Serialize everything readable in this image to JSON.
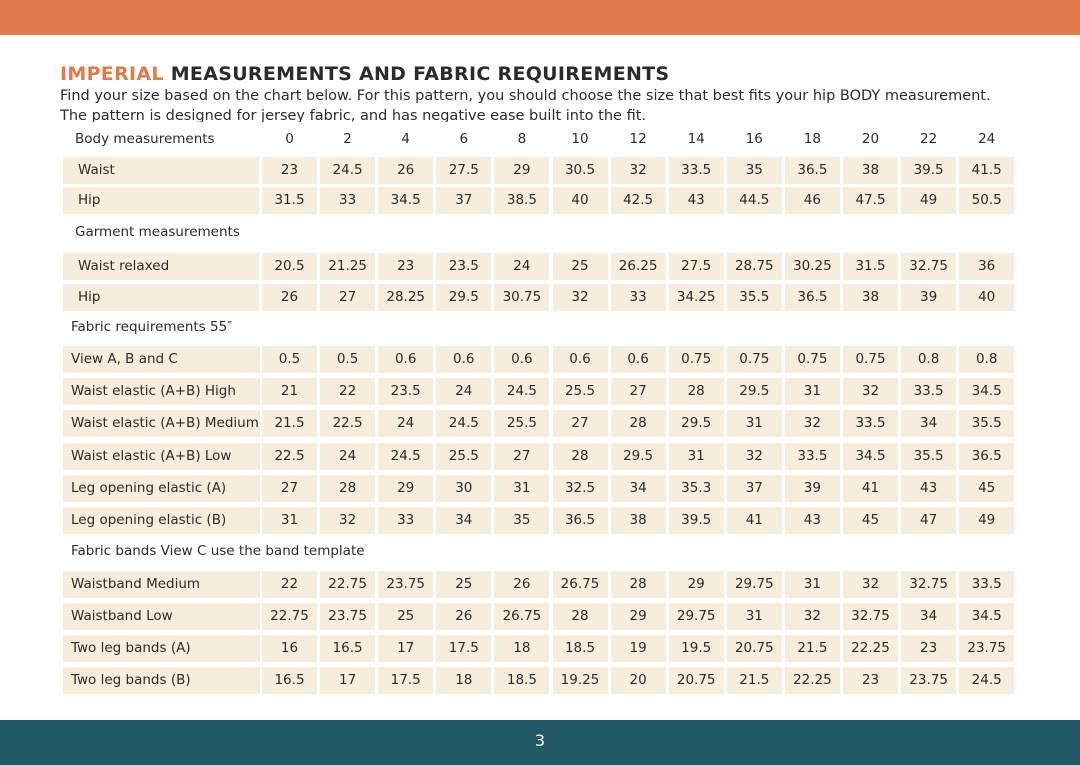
{
  "header": {
    "title_accent": "IMPERIAL",
    "title_rest": "MEASUREMENTS AND FABRIC REQUIREMENTS",
    "intro": "Find your size based on the chart below. For this pattern, you should choose the size that best fits your hip BODY measurement.  The pattern is designed for jersey fabric, and has negative ease built into the fit."
  },
  "table": {
    "columns_label": "Body measurements",
    "sizes": [
      0,
      2,
      4,
      6,
      8,
      10,
      12,
      14,
      16,
      18,
      20,
      22,
      24
    ],
    "sections": [
      {
        "rows": [
          {
            "label": "Waist",
            "values": [
              23,
              24.5,
              26,
              27.5,
              29,
              30.5,
              32,
              33.5,
              35,
              36.5,
              38,
              39.5,
              41.5
            ]
          },
          {
            "label": "Hip",
            "values": [
              31.5,
              33,
              34.5,
              37,
              38.5,
              40,
              42.5,
              43,
              44.5,
              46,
              47.5,
              49,
              50.5
            ]
          }
        ]
      },
      {
        "heading": "Garment measurements",
        "rows": [
          {
            "label": "Waist relaxed",
            "values": [
              20.5,
              21.25,
              23,
              23.5,
              24,
              25,
              26.25,
              27.5,
              28.75,
              30.25,
              31.5,
              32.75,
              36
            ]
          },
          {
            "label": "Hip",
            "values": [
              26,
              27,
              28.25,
              29.5,
              30.75,
              32,
              33,
              34.25,
              35.5,
              36.5,
              38,
              39,
              40
            ]
          }
        ]
      },
      {
        "heading": "Fabric requirements 55″",
        "rows": [
          {
            "label": "View A, B and C",
            "values": [
              0.5,
              0.5,
              0.6,
              0.6,
              0.6,
              0.6,
              0.6,
              0.75,
              0.75,
              0.75,
              0.75,
              0.8,
              0.8
            ]
          },
          {
            "label": "Waist elastic (A+B) High",
            "values": [
              21,
              22,
              23.5,
              24,
              24.5,
              25.5,
              27,
              28,
              29.5,
              31,
              32,
              33.5,
              34.5
            ]
          },
          {
            "label": "Waist elastic (A+B) Medium",
            "values": [
              21.5,
              22.5,
              24,
              24.5,
              25.5,
              27,
              28,
              29.5,
              31,
              32,
              33.5,
              34,
              35.5
            ]
          },
          {
            "label": "Waist elastic (A+B) Low",
            "values": [
              22.5,
              24,
              24.5,
              25.5,
              27,
              28,
              29.5,
              31,
              32,
              33.5,
              34.5,
              35.5,
              36.5
            ]
          },
          {
            "label": "Leg opening elastic (A)",
            "values": [
              27,
              28,
              29,
              30,
              31,
              32.5,
              34,
              35.3,
              37,
              39,
              41,
              43,
              45
            ]
          },
          {
            "label": "Leg opening elastic (B)",
            "values": [
              31,
              32,
              33,
              34,
              35,
              36.5,
              38,
              39.5,
              41,
              43,
              45,
              47,
              49
            ]
          }
        ]
      },
      {
        "heading": "Fabric bands View C use the band template",
        "rows": [
          {
            "label": "Waistband Medium",
            "values": [
              22,
              22.75,
              23.75,
              25,
              26,
              26.75,
              28,
              29,
              29.75,
              31,
              32,
              32.75,
              33.5
            ]
          },
          {
            "label": "Waistband Low",
            "values": [
              22.75,
              23.75,
              25,
              26,
              26.75,
              28,
              29,
              29.75,
              31,
              32,
              32.75,
              34,
              34.5
            ]
          },
          {
            "label": "Two leg bands (A)",
            "values": [
              16,
              16.5,
              17,
              17.5,
              18,
              18.5,
              19,
              19.5,
              20.75,
              21.5,
              22.25,
              23,
              23.75
            ]
          },
          {
            "label": "Two leg bands (B)",
            "values": [
              16.5,
              17,
              17.5,
              18,
              18.5,
              19.25,
              20,
              20.75,
              21.5,
              22.25,
              23,
              23.75,
              24.5
            ]
          }
        ]
      }
    ]
  },
  "footer": {
    "page_number": "3"
  }
}
